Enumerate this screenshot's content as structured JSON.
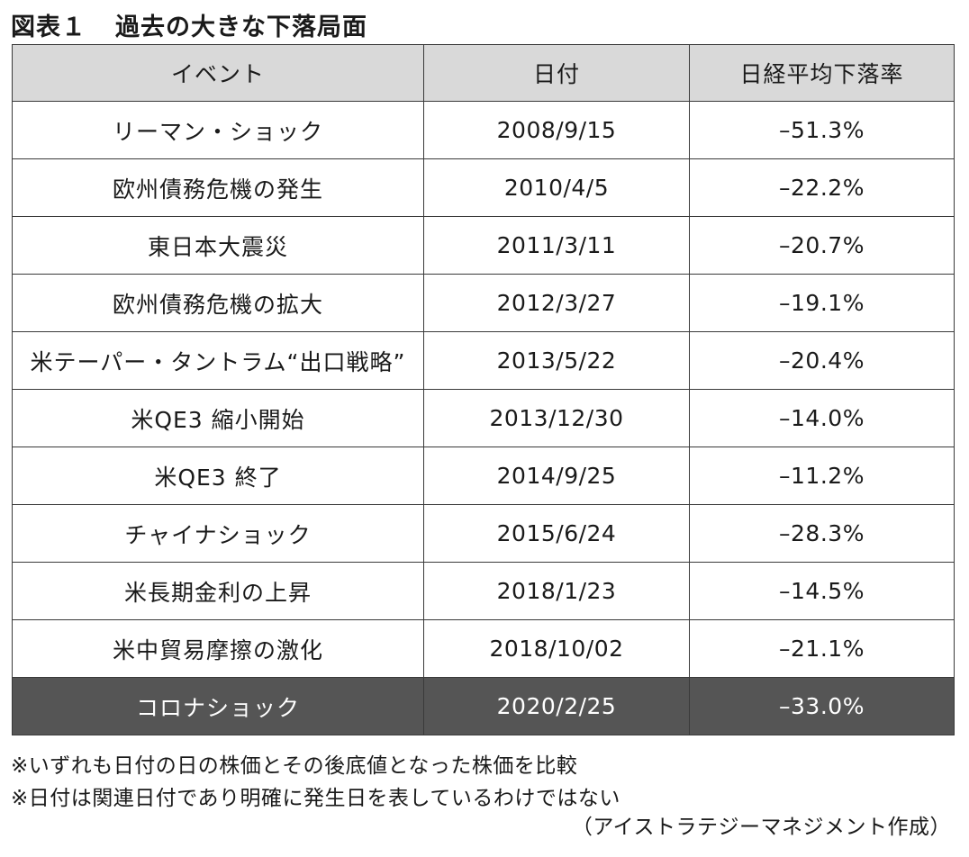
{
  "figure": {
    "label": "図表１",
    "title": "過去の大きな下落局面"
  },
  "table": {
    "headers": [
      "イベント",
      "日付",
      "日経平均下落率"
    ],
    "rows": [
      {
        "event": "リーマン・ショック",
        "date": "2008/9/15",
        "decline": "–51.3%"
      },
      {
        "event": "欧州債務危機の発生",
        "date": "2010/4/5",
        "decline": "–22.2%"
      },
      {
        "event": "東日本大震災",
        "date": "2011/3/11",
        "decline": "–20.7%"
      },
      {
        "event": "欧州債務危機の拡大",
        "date": "2012/3/27",
        "decline": "–19.1%"
      },
      {
        "event": "米テーパー・タントラム“出口戦略”",
        "date": "2013/5/22",
        "decline": "–20.4%"
      },
      {
        "event": "米QE3 縮小開始",
        "date": "2013/12/30",
        "decline": "–14.0%"
      },
      {
        "event": "米QE3 終了",
        "date": "2014/9/25",
        "decline": "–11.2%"
      },
      {
        "event": "チャイナショック",
        "date": "2015/6/24",
        "decline": "–28.3%"
      },
      {
        "event": "米長期金利の上昇",
        "date": "2018/1/23",
        "decline": "–14.5%"
      },
      {
        "event": "米中貿易摩擦の激化",
        "date": "2018/10/02",
        "decline": "–21.1%"
      },
      {
        "event": "コロナショック",
        "date": "2020/2/25",
        "decline": "–33.0%"
      }
    ],
    "highlight_color": "#555555",
    "header_color": "#d9d9d9"
  },
  "notes": [
    "※いずれも日付の日の株価とその後底値となった株価を比較",
    "※日付は関連日付であり明確に発生日を表しているわけではない"
  ],
  "source": "（アイストラテジーマネジメント作成）"
}
